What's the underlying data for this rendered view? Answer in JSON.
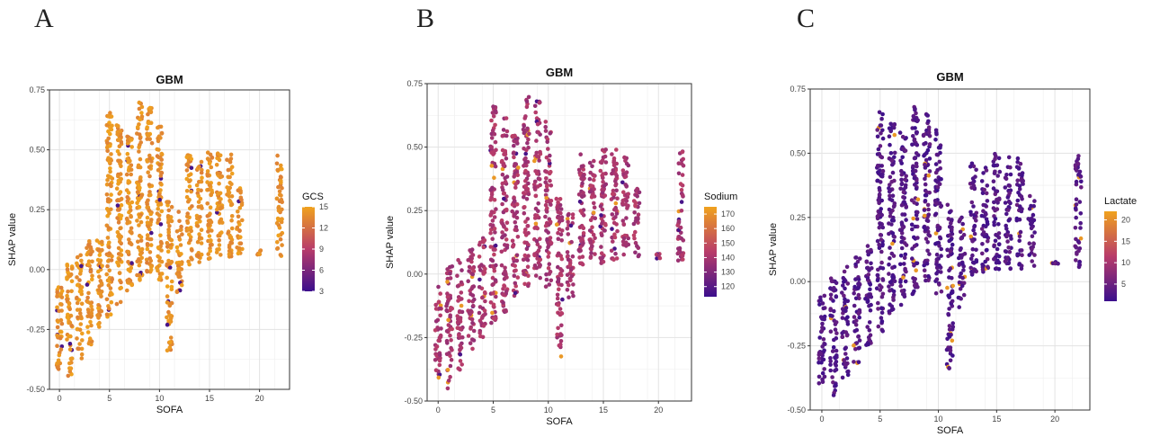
{
  "chart_data": [
    {
      "panel_letter": "A",
      "type": "scatter",
      "title": "GBM",
      "xlabel": "SOFA",
      "ylabel": "SHAP value",
      "xlim": [
        -1,
        23
      ],
      "ylim": [
        -0.5,
        0.75
      ],
      "x_ticks": [
        0,
        5,
        10,
        15,
        20
      ],
      "y_ticks": [
        -0.5,
        -0.25,
        0.0,
        0.25,
        0.5,
        0.75
      ],
      "y_tick_labels": [
        "-0.50",
        "-0.25",
        "0.00",
        "0.25",
        "0.50",
        "0.75"
      ],
      "grid": true,
      "legend": {
        "title": "GCS",
        "min": 3,
        "max": 15,
        "ticks": [
          3,
          6,
          9,
          12,
          15
        ],
        "placement": "right"
      },
      "palette": {
        "low": "#3b0f8c",
        "mid": "#b83c6a",
        "high": "#f0a21e"
      },
      "dominant_color_value": 14,
      "points_summary": [
        {
          "sofa": 0,
          "shap_min": -0.42,
          "shap_max": -0.05
        },
        {
          "sofa": 1,
          "shap_min": -0.45,
          "shap_max": 0.03
        },
        {
          "sofa": 2,
          "shap_min": -0.38,
          "shap_max": 0.06
        },
        {
          "sofa": 3,
          "shap_min": -0.32,
          "shap_max": 0.12
        },
        {
          "sofa": 4,
          "shap_min": -0.25,
          "shap_max": 0.15
        },
        {
          "sofa": 5,
          "shap_min": -0.2,
          "shap_max": 0.66
        },
        {
          "sofa": 6,
          "shap_min": -0.15,
          "shap_max": 0.62
        },
        {
          "sofa": 7,
          "shap_min": -0.1,
          "shap_max": 0.58
        },
        {
          "sofa": 8,
          "shap_min": -0.05,
          "shap_max": 0.7
        },
        {
          "sofa": 9,
          "shap_min": -0.02,
          "shap_max": 0.68
        },
        {
          "sofa": 10,
          "shap_min": -0.05,
          "shap_max": 0.6
        },
        {
          "sofa": 11,
          "shap_min": -0.34,
          "shap_max": 0.3
        },
        {
          "sofa": 12,
          "shap_min": -0.1,
          "shap_max": 0.25
        },
        {
          "sofa": 13,
          "shap_min": 0.02,
          "shap_max": 0.48
        },
        {
          "sofa": 14,
          "shap_min": 0.03,
          "shap_max": 0.45
        },
        {
          "sofa": 15,
          "shap_min": 0.04,
          "shap_max": 0.5
        },
        {
          "sofa": 16,
          "shap_min": 0.05,
          "shap_max": 0.5
        },
        {
          "sofa": 17,
          "shap_min": 0.05,
          "shap_max": 0.48
        },
        {
          "sofa": 18,
          "shap_min": 0.06,
          "shap_max": 0.34
        },
        {
          "sofa": 20,
          "shap_min": 0.06,
          "shap_max": 0.08
        },
        {
          "sofa": 22,
          "shap_min": 0.05,
          "shap_max": 0.49
        }
      ]
    },
    {
      "panel_letter": "B",
      "type": "scatter",
      "title": "GBM",
      "xlabel": "SOFA",
      "ylabel": "SHAP value",
      "xlim": [
        -1,
        23
      ],
      "ylim": [
        -0.5,
        0.75
      ],
      "x_ticks": [
        0,
        5,
        10,
        15,
        20
      ],
      "y_ticks": [
        -0.5,
        -0.25,
        0.0,
        0.25,
        0.5,
        0.75
      ],
      "y_tick_labels": [
        "-0.50",
        "-0.25",
        "0.00",
        "0.25",
        "0.50",
        "0.75"
      ],
      "grid": true,
      "legend": {
        "title": "Sodium",
        "min": 113,
        "max": 175,
        "ticks": [
          120,
          130,
          140,
          150,
          160,
          170
        ],
        "placement": "right"
      },
      "palette": {
        "low": "#3b0f8c",
        "mid": "#b83c6a",
        "high": "#f0a21e"
      },
      "dominant_color_value": 140,
      "points_summary": [
        {
          "sofa": 0,
          "shap_min": -0.42,
          "shap_max": -0.05
        },
        {
          "sofa": 1,
          "shap_min": -0.45,
          "shap_max": 0.03
        },
        {
          "sofa": 2,
          "shap_min": -0.38,
          "shap_max": 0.06
        },
        {
          "sofa": 3,
          "shap_min": -0.32,
          "shap_max": 0.12
        },
        {
          "sofa": 4,
          "shap_min": -0.25,
          "shap_max": 0.15
        },
        {
          "sofa": 5,
          "shap_min": -0.2,
          "shap_max": 0.66
        },
        {
          "sofa": 6,
          "shap_min": -0.15,
          "shap_max": 0.62
        },
        {
          "sofa": 7,
          "shap_min": -0.1,
          "shap_max": 0.58
        },
        {
          "sofa": 8,
          "shap_min": -0.05,
          "shap_max": 0.7
        },
        {
          "sofa": 9,
          "shap_min": -0.02,
          "shap_max": 0.68
        },
        {
          "sofa": 10,
          "shap_min": -0.05,
          "shap_max": 0.6
        },
        {
          "sofa": 11,
          "shap_min": -0.34,
          "shap_max": 0.3
        },
        {
          "sofa": 12,
          "shap_min": -0.1,
          "shap_max": 0.25
        },
        {
          "sofa": 13,
          "shap_min": 0.02,
          "shap_max": 0.48
        },
        {
          "sofa": 14,
          "shap_min": 0.03,
          "shap_max": 0.45
        },
        {
          "sofa": 15,
          "shap_min": 0.04,
          "shap_max": 0.5
        },
        {
          "sofa": 16,
          "shap_min": 0.05,
          "shap_max": 0.5
        },
        {
          "sofa": 17,
          "shap_min": 0.05,
          "shap_max": 0.48
        },
        {
          "sofa": 18,
          "shap_min": 0.06,
          "shap_max": 0.34
        },
        {
          "sofa": 20,
          "shap_min": 0.06,
          "shap_max": 0.08
        },
        {
          "sofa": 22,
          "shap_min": 0.05,
          "shap_max": 0.49
        }
      ]
    },
    {
      "panel_letter": "C",
      "type": "scatter",
      "title": "GBM",
      "xlabel": "SOFA",
      "ylabel": "SHAP value",
      "xlim": [
        -1,
        23
      ],
      "ylim": [
        -0.5,
        0.75
      ],
      "x_ticks": [
        0,
        5,
        10,
        15,
        20
      ],
      "y_ticks": [
        -0.5,
        -0.25,
        0.0,
        0.25,
        0.5,
        0.75
      ],
      "y_tick_labels": [
        "-0.50",
        "-0.25",
        "0.00",
        "0.25",
        "0.50",
        "0.75"
      ],
      "grid": true,
      "legend": {
        "title": "Lactate",
        "min": 1,
        "max": 22,
        "ticks": [
          5,
          10,
          15,
          20
        ],
        "placement": "right"
      },
      "palette": {
        "low": "#3b0f8c",
        "mid": "#b83c6a",
        "high": "#f0a21e"
      },
      "dominant_color_value": 3,
      "points_summary": [
        {
          "sofa": 0,
          "shap_min": -0.42,
          "shap_max": -0.05
        },
        {
          "sofa": 1,
          "shap_min": -0.45,
          "shap_max": 0.03
        },
        {
          "sofa": 2,
          "shap_min": -0.38,
          "shap_max": 0.06
        },
        {
          "sofa": 3,
          "shap_min": -0.32,
          "shap_max": 0.12
        },
        {
          "sofa": 4,
          "shap_min": -0.25,
          "shap_max": 0.15
        },
        {
          "sofa": 5,
          "shap_min": -0.2,
          "shap_max": 0.66
        },
        {
          "sofa": 6,
          "shap_min": -0.15,
          "shap_max": 0.62
        },
        {
          "sofa": 7,
          "shap_min": -0.1,
          "shap_max": 0.58
        },
        {
          "sofa": 8,
          "shap_min": -0.05,
          "shap_max": 0.7
        },
        {
          "sofa": 9,
          "shap_min": -0.02,
          "shap_max": 0.68
        },
        {
          "sofa": 10,
          "shap_min": -0.05,
          "shap_max": 0.6
        },
        {
          "sofa": 11,
          "shap_min": -0.34,
          "shap_max": 0.3
        },
        {
          "sofa": 12,
          "shap_min": -0.1,
          "shap_max": 0.25
        },
        {
          "sofa": 13,
          "shap_min": 0.02,
          "shap_max": 0.48
        },
        {
          "sofa": 14,
          "shap_min": 0.03,
          "shap_max": 0.45
        },
        {
          "sofa": 15,
          "shap_min": 0.04,
          "shap_max": 0.5
        },
        {
          "sofa": 16,
          "shap_min": 0.05,
          "shap_max": 0.5
        },
        {
          "sofa": 17,
          "shap_min": 0.05,
          "shap_max": 0.48
        },
        {
          "sofa": 18,
          "shap_min": 0.06,
          "shap_max": 0.34
        },
        {
          "sofa": 20,
          "shap_min": 0.06,
          "shap_max": 0.08
        },
        {
          "sofa": 22,
          "shap_min": 0.05,
          "shap_max": 0.49
        }
      ]
    }
  ]
}
